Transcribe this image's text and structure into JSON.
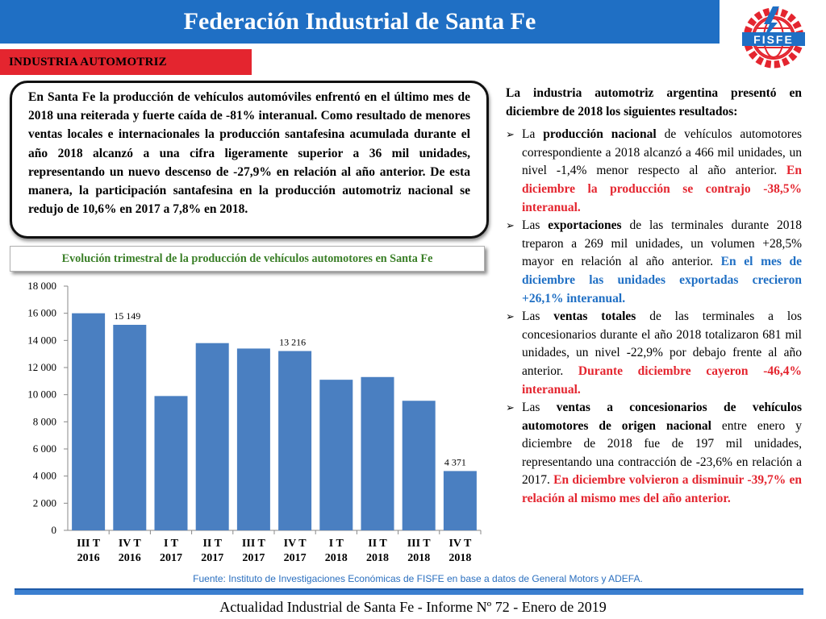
{
  "header": {
    "title": "Federación Industrial de Santa Fe",
    "logo_text": "FISFE"
  },
  "section_tag": "INDUSTRIA AUTOMOTRIZ",
  "summary": "En Santa Fe la producción de vehículos automóviles enfrentó en el último mes de 2018 una reiterada y fuerte caída de -81% interanual. Como resultado de menores ventas locales e internacionales la producción santafesina acumulada durante el año 2018 alcanzó a una cifra ligeramente superior a 36 mil unidades, representando un nuevo descenso de -27,9% en relación al año anterior. De esta manera, la participación santafesina en la producción automotriz nacional se redujo de 10,6% en 2017 a 7,8% en 2018.",
  "chart_title": "Evolución trimestral de la producción de vehículos automotores en Santa Fe",
  "chart_data": {
    "type": "bar",
    "categories": [
      [
        "III T",
        "2016"
      ],
      [
        "IV T",
        "2016"
      ],
      [
        "I T",
        "2017"
      ],
      [
        "II T",
        "2017"
      ],
      [
        "III T",
        "2017"
      ],
      [
        "IV T",
        "2017"
      ],
      [
        "I T",
        "2018"
      ],
      [
        "II T",
        "2018"
      ],
      [
        "III T",
        "2018"
      ],
      [
        "IV T",
        "2018"
      ]
    ],
    "values": [
      16000,
      15149,
      9900,
      13800,
      13400,
      13216,
      11100,
      11300,
      9550,
      4371
    ],
    "data_labels": [
      "",
      "15 149",
      "",
      "",
      "",
      "13 216",
      "",
      "",
      "",
      "4 371"
    ],
    "ylim": [
      0,
      18000
    ],
    "ytick_step": 2000,
    "ytick_labels": [
      "0",
      "2 000",
      "4 000",
      "6 000",
      "8 000",
      "10 000",
      "12 000",
      "14 000",
      "16 000",
      "18 000"
    ],
    "bar_color": "#4a7fc1",
    "grid": false
  },
  "right": {
    "intro": "La industria automotriz argentina presentó en diciembre de 2018 los siguientes resultados:",
    "bullets": [
      {
        "bullet_icon": "arrow-bullet-icon",
        "parts": [
          {
            "t": "La ",
            "s": ""
          },
          {
            "t": "producción nacional",
            "s": "bold"
          },
          {
            "t": " de vehículos automotores correspondiente a 2018 alcanzó a 466 mil unidades, un nivel -1,4% menor respecto al año anterior. ",
            "s": ""
          },
          {
            "t": "En diciembre la producción se contrajo -38,5% interanual.",
            "s": "red"
          }
        ]
      },
      {
        "bullet_icon": "arrow-bullet-icon",
        "parts": [
          {
            "t": "Las ",
            "s": ""
          },
          {
            "t": "exportaciones",
            "s": "bold"
          },
          {
            "t": " de las terminales durante 2018 treparon a 269 mil unidades, un volumen +28,5% mayor en relación al año anterior. ",
            "s": ""
          },
          {
            "t": "En el mes de diciembre las unidades exportadas crecieron +26,1% interanual.",
            "s": "blue"
          }
        ]
      },
      {
        "bullet_icon": "arrow-bullet-icon",
        "parts": [
          {
            "t": "Las ",
            "s": ""
          },
          {
            "t": "ventas totales",
            "s": "bold"
          },
          {
            "t": " de las terminales a los concesionarios durante el año 2018 totalizaron 681 mil unidades, un nivel -22,9% por debajo frente al año anterior. ",
            "s": ""
          },
          {
            "t": "Durante diciembre cayeron -46,4% interanual.",
            "s": "red"
          }
        ]
      },
      {
        "bullet_icon": "arrow-bullet-icon",
        "parts": [
          {
            "t": "Las ",
            "s": ""
          },
          {
            "t": "ventas a concesionarios de vehículos automotores de origen nacional",
            "s": "bold"
          },
          {
            "t": " entre enero y diciembre de 2018 fue de 197 mil unidades, representando una contracción de -23,6% en relación a 2017. ",
            "s": ""
          },
          {
            "t": "En diciembre volvieron a disminuir -39,7% en relación al mismo mes del año anterior.",
            "s": "red"
          }
        ]
      }
    ]
  },
  "source": "Fuente: Instituto de Investigaciones Económicas de FISFE en base a datos de General Motors y ADEFA.",
  "footer": "Actualidad Industrial de Santa Fe - Informe Nº 72 - Enero de 2019"
}
